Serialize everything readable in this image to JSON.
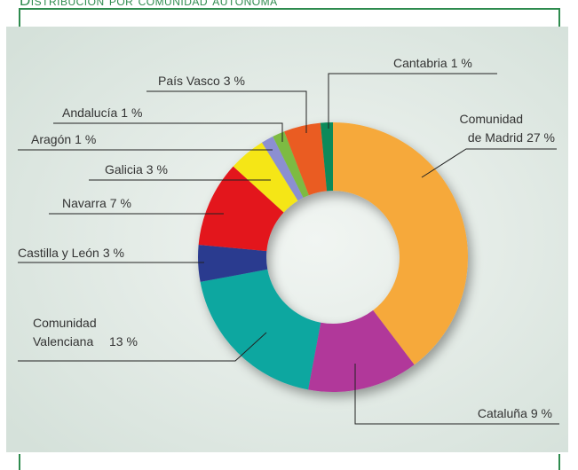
{
  "title": "Distribución por comunidad autónoma",
  "chart_data": {
    "type": "donut",
    "categories": [
      "Comunidad de Madrid",
      "Cataluña",
      "Comunidad Valenciana",
      "Castilla y León",
      "Navarra",
      "Galicia",
      "Aragón",
      "Andalucía",
      "País Vasco",
      "Cantabria"
    ],
    "values": [
      27,
      9,
      13,
      3,
      7,
      3,
      1,
      1,
      3,
      1
    ],
    "value_labels": [
      "27 %",
      "9 %",
      "13 %",
      "3 %",
      "7 %",
      "3 %",
      "1 %",
      "1 %",
      "3 %",
      "1 %"
    ],
    "colors": [
      "#f6a93b",
      "#b1399a",
      "#0aa7a0",
      "#2b3a8f",
      "#e3191f",
      "#f5e614",
      "#8c8fd1",
      "#7dbb42",
      "#ea5b24",
      "#0a8a5a"
    ]
  }
}
